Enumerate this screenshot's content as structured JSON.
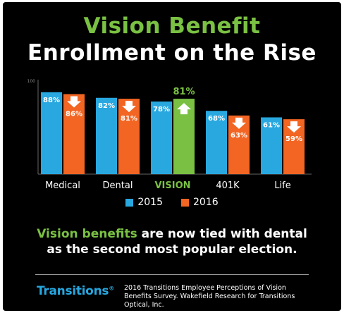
{
  "title_line1": "Vision Benefit",
  "title_line2": "Enrollment on the Rise",
  "chart_data": {
    "type": "bar",
    "categories": [
      "Medical",
      "Dental",
      "VISION",
      "401K",
      "Life"
    ],
    "series": [
      {
        "name": "2015",
        "values": [
          88,
          82,
          78,
          68,
          61
        ],
        "labels": [
          "88%",
          "82%",
          "78%",
          "68%",
          "61%"
        ]
      },
      {
        "name": "2016",
        "values": [
          86,
          81,
          81,
          63,
          59
        ],
        "labels": [
          "86%",
          "81%",
          "81%",
          "63%",
          "59%"
        ]
      }
    ],
    "trend_2016": [
      "down",
      "down",
      "up",
      "down",
      "down"
    ],
    "highlight_category": "VISION",
    "ylim": [
      0,
      100
    ],
    "y_top_tick": "100",
    "grid": false,
    "legend_position": "bottom",
    "colors": {
      "2015": "#29a8e0",
      "2016": "#f26522",
      "highlight": "#7ac143",
      "label_highlight": "#7ac143"
    }
  },
  "caption": {
    "highlight": "Vision benefits",
    "line1_rest": " are now tied with dental",
    "line2": "as the second most popular election."
  },
  "logo": {
    "text": "Transitions",
    "mark": "®"
  },
  "source": "2016 Transitions Employee Perceptions of Vision Benefits Survey. Wakefield Research for Transitions Optical, Inc."
}
